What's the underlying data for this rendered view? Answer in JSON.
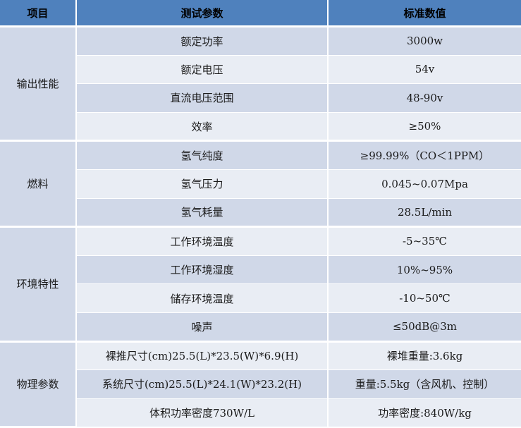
{
  "headers": {
    "item": "项目",
    "param": "测试参数",
    "value": "标准数值"
  },
  "groups": [
    {
      "name": "输出性能",
      "rows": [
        {
          "param": "额定功率",
          "value": "3000w"
        },
        {
          "param": "额定电压",
          "value": "54v"
        },
        {
          "param": "直流电压范围",
          "value": "48-90v"
        },
        {
          "param": "效率",
          "value": "≥50%"
        }
      ]
    },
    {
      "name": "燃料",
      "rows": [
        {
          "param": "氢气纯度",
          "value": "≥99.99%（CO＜1PPM）"
        },
        {
          "param": "氢气压力",
          "value": "0.045~0.07Mpa"
        },
        {
          "param": "氢气耗量",
          "value": "28.5L/min"
        }
      ]
    },
    {
      "name": "环境特性",
      "rows": [
        {
          "param": "工作环境温度",
          "value": "-5~35℃"
        },
        {
          "param": "工作环境湿度",
          "value": "10%~95%"
        },
        {
          "param": "储存环境温度",
          "value": "-10~50℃"
        },
        {
          "param": "噪声",
          "value": "≤50dB@3m"
        }
      ]
    },
    {
      "name": "物理参数",
      "rows": [
        {
          "param": "裸推尺寸(cm)25.5(L)*23.5(W)*6.9(H)",
          "value": "裸堆重量:3.6kg"
        },
        {
          "param": "系统尺寸(cm)25.5(L)*24.1(W)*23.2(H)",
          "value": "重量:5.5kg（含风机、控制）"
        },
        {
          "param": "体积功率密度730W/L",
          "value": "功率密度:840W/kg"
        }
      ]
    }
  ],
  "colors": {
    "header": "#4f81bd",
    "band_dark": "#d0d8e8",
    "band_light": "#e9edf4"
  }
}
